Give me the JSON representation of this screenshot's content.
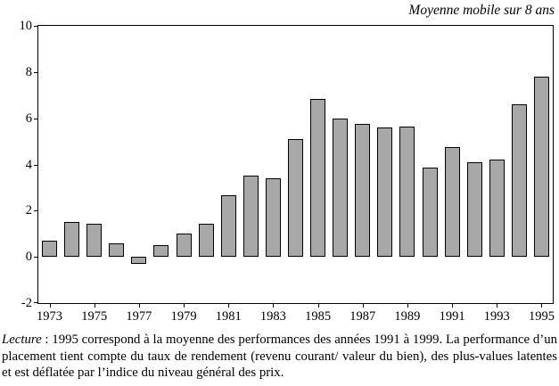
{
  "chart_data": {
    "type": "bar",
    "title": "Moyenne mobile sur 8 ans",
    "categories": [
      1973,
      1974,
      1975,
      1976,
      1977,
      1978,
      1979,
      1980,
      1981,
      1982,
      1983,
      1984,
      1985,
      1986,
      1987,
      1988,
      1989,
      1990,
      1991,
      1992,
      1993,
      1994,
      1995
    ],
    "values": [
      0.7,
      1.5,
      1.45,
      0.6,
      -0.3,
      0.5,
      1.0,
      1.45,
      2.65,
      3.5,
      3.4,
      5.1,
      6.85,
      6.0,
      5.75,
      5.6,
      5.65,
      3.85,
      4.75,
      4.1,
      4.2,
      6.6,
      7.8
    ],
    "ylim": [
      -2,
      10
    ],
    "yticks": [
      -2,
      0,
      2,
      4,
      6,
      8,
      10
    ],
    "xtick_labels": [
      "1973",
      "1975",
      "1977",
      "1979",
      "1981",
      "1983",
      "1985",
      "1987",
      "1989",
      "1991",
      "1993",
      "1995"
    ],
    "bar_color": "#a8a8a8",
    "bar_border": "#000000",
    "grid": false,
    "legend": "none",
    "xlabel": "",
    "ylabel": ""
  },
  "caption": {
    "lead": "Lecture",
    "text": " : 1995 correspond à la moyenne des performances des années 1991 à 1999. La performance d’un placement tient compte du taux de rendement (revenu courant/ valeur du bien), des plus-values latentes et est déflatée par l’indice du niveau général des prix."
  }
}
